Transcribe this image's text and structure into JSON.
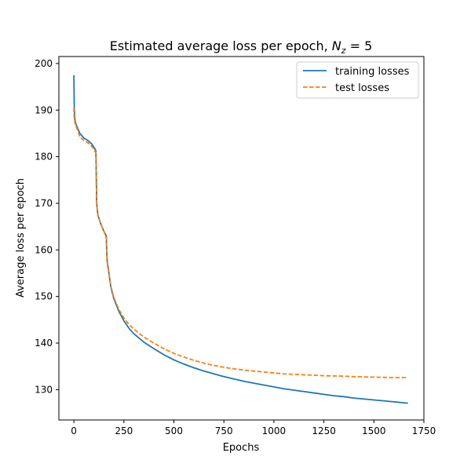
{
  "chart_data": {
    "type": "line",
    "title": "Estimated average loss per epoch, ",
    "title_math": {
      "var": "N",
      "sub": "z",
      "rest": " = 5"
    },
    "xlabel": "Epochs",
    "ylabel": "Average loss per epoch",
    "xlim": [
      -75,
      1750
    ],
    "ylim": [
      123.5,
      201.5
    ],
    "xticks": [
      0,
      250,
      500,
      750,
      1000,
      1250,
      1500,
      1750
    ],
    "yticks": [
      130,
      140,
      150,
      160,
      170,
      180,
      190,
      200
    ],
    "grid": false,
    "legend_position": "top-right",
    "series": [
      {
        "name": "training losses",
        "color": "#1f77b4",
        "dash": "solid",
        "points": [
          [
            0,
            197.5
          ],
          [
            2,
            190.5
          ],
          [
            5,
            188.0
          ],
          [
            10,
            187.0
          ],
          [
            20,
            186.0
          ],
          [
            30,
            185.0
          ],
          [
            50,
            184.0
          ],
          [
            70,
            183.5
          ],
          [
            90,
            182.7
          ],
          [
            105,
            181.7
          ],
          [
            110,
            181.2
          ],
          [
            112,
            176.0
          ],
          [
            114,
            170.0
          ],
          [
            120,
            167.5
          ],
          [
            135,
            165.5
          ],
          [
            150,
            164.0
          ],
          [
            162,
            163.0
          ],
          [
            164,
            160.0
          ],
          [
            166,
            157.8
          ],
          [
            175,
            155.0
          ],
          [
            185,
            152.0
          ],
          [
            200,
            149.5
          ],
          [
            225,
            146.8
          ],
          [
            250,
            144.8
          ],
          [
            275,
            143.2
          ],
          [
            300,
            142.0
          ],
          [
            350,
            140.2
          ],
          [
            400,
            138.8
          ],
          [
            450,
            137.5
          ],
          [
            500,
            136.4
          ],
          [
            550,
            135.5
          ],
          [
            600,
            134.7
          ],
          [
            650,
            134.0
          ],
          [
            700,
            133.4
          ],
          [
            750,
            132.8
          ],
          [
            800,
            132.3
          ],
          [
            850,
            131.8
          ],
          [
            900,
            131.4
          ],
          [
            950,
            131.0
          ],
          [
            1000,
            130.6
          ],
          [
            1050,
            130.2
          ],
          [
            1100,
            129.9
          ],
          [
            1150,
            129.6
          ],
          [
            1200,
            129.3
          ],
          [
            1250,
            129.0
          ],
          [
            1300,
            128.7
          ],
          [
            1350,
            128.5
          ],
          [
            1400,
            128.2
          ],
          [
            1450,
            128.0
          ],
          [
            1500,
            127.8
          ],
          [
            1550,
            127.6
          ],
          [
            1600,
            127.4
          ],
          [
            1670,
            127.1
          ]
        ]
      },
      {
        "name": "test losses",
        "color": "#ff7f0e",
        "dash": "dashed",
        "points": [
          [
            0,
            190.5
          ],
          [
            2,
            188.5
          ],
          [
            5,
            187.3
          ],
          [
            10,
            186.6
          ],
          [
            20,
            185.6
          ],
          [
            30,
            184.2
          ],
          [
            50,
            183.5
          ],
          [
            70,
            183.0
          ],
          [
            90,
            182.2
          ],
          [
            105,
            181.2
          ],
          [
            110,
            180.8
          ],
          [
            112,
            175.5
          ],
          [
            114,
            169.8
          ],
          [
            120,
            167.4
          ],
          [
            135,
            165.5
          ],
          [
            150,
            164.0
          ],
          [
            162,
            162.5
          ],
          [
            164,
            159.8
          ],
          [
            166,
            157.5
          ],
          [
            175,
            155.0
          ],
          [
            185,
            152.2
          ],
          [
            200,
            149.8
          ],
          [
            225,
            147.2
          ],
          [
            250,
            145.4
          ],
          [
            275,
            144.0
          ],
          [
            300,
            143.0
          ],
          [
            350,
            141.3
          ],
          [
            400,
            140.0
          ],
          [
            450,
            138.8
          ],
          [
            500,
            137.8
          ],
          [
            550,
            137.0
          ],
          [
            600,
            136.3
          ],
          [
            650,
            135.7
          ],
          [
            700,
            135.2
          ],
          [
            750,
            134.8
          ],
          [
            800,
            134.5
          ],
          [
            850,
            134.2
          ],
          [
            900,
            134.0
          ],
          [
            950,
            133.8
          ],
          [
            1000,
            133.6
          ],
          [
            1050,
            133.4
          ],
          [
            1100,
            133.3
          ],
          [
            1150,
            133.2
          ],
          [
            1200,
            133.1
          ],
          [
            1250,
            133.0
          ],
          [
            1300,
            132.95
          ],
          [
            1350,
            132.9
          ],
          [
            1400,
            132.8
          ],
          [
            1450,
            132.75
          ],
          [
            1500,
            132.7
          ],
          [
            1550,
            132.65
          ],
          [
            1600,
            132.6
          ],
          [
            1670,
            132.6
          ]
        ]
      }
    ]
  }
}
